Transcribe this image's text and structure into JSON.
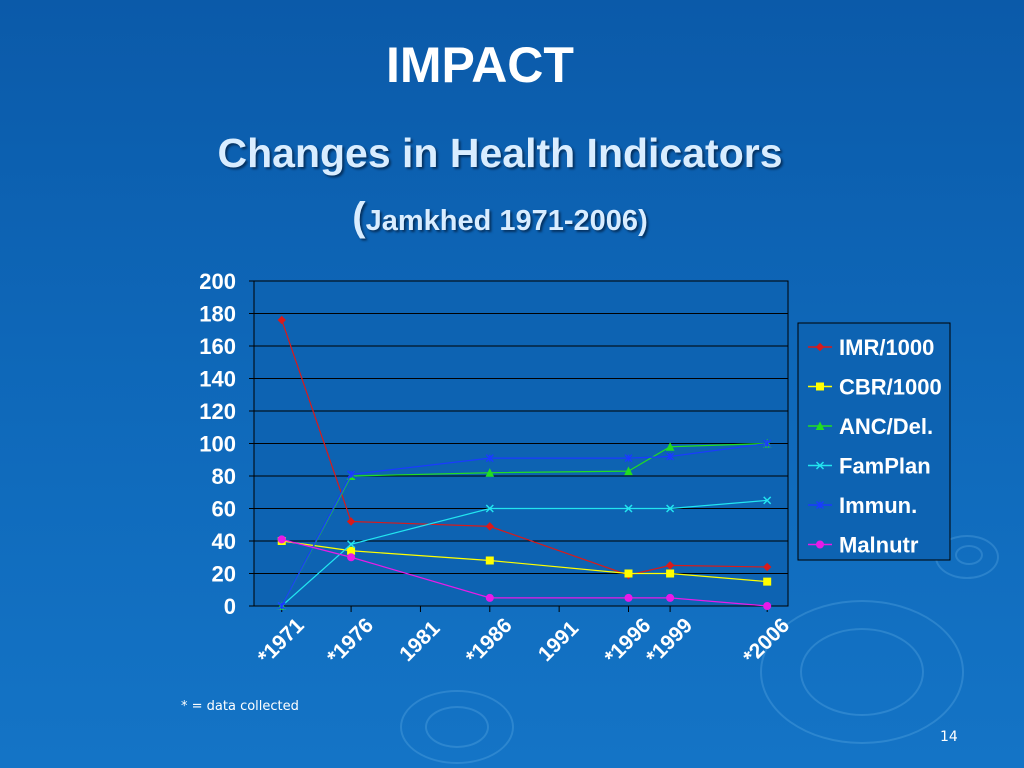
{
  "slide": {
    "title": "IMPACT",
    "heading": "Changes in Health Indicators",
    "subheading_paren": "(",
    "subheading_text": "Jamkhed 1971-2006)",
    "footnote": "* = data collected",
    "page_number": "14"
  },
  "colors": {
    "background": "#0e67b8",
    "text": "#ffffff",
    "heading_text": "#d9edff",
    "plot_background": "#0d63b2"
  },
  "chart_data": {
    "type": "line",
    "title": "",
    "xlabel": "",
    "ylabel": "",
    "ylim": [
      0,
      200
    ],
    "yticks": [
      0,
      20,
      40,
      60,
      80,
      100,
      120,
      140,
      160,
      180,
      200
    ],
    "x_range": [
      1969,
      2007.5
    ],
    "categories": [
      "*1971",
      "*1976",
      "1981",
      "*1986",
      "1991",
      "*1996",
      "*1999",
      "*2006"
    ],
    "category_years": [
      1971,
      1976,
      1981,
      1986,
      1991,
      1996,
      1999,
      2006
    ],
    "grid": "horizontal",
    "legend_position": "right",
    "series": [
      {
        "name": "IMR/1000",
        "color": "#d81b1b",
        "marker": "diamond",
        "points": [
          [
            1971,
            176
          ],
          [
            1976,
            52
          ],
          [
            1986,
            49
          ],
          [
            1996,
            19
          ],
          [
            1999,
            25
          ],
          [
            2006,
            24
          ]
        ]
      },
      {
        "name": "CBR/1000",
        "color": "#ffff00",
        "marker": "square",
        "points": [
          [
            1971,
            40
          ],
          [
            1976,
            34
          ],
          [
            1986,
            28
          ],
          [
            1996,
            20
          ],
          [
            1999,
            20
          ],
          [
            2006,
            15
          ]
        ]
      },
      {
        "name": "ANC/Del.",
        "color": "#22dd22",
        "marker": "triangle",
        "points": [
          [
            1971,
            0
          ],
          [
            1976,
            80
          ],
          [
            1986,
            82
          ],
          [
            1996,
            83
          ],
          [
            1999,
            98
          ],
          [
            2006,
            100
          ]
        ]
      },
      {
        "name": "FamPlan",
        "color": "#22e5f0",
        "marker": "x",
        "points": [
          [
            1971,
            0
          ],
          [
            1976,
            38
          ],
          [
            1986,
            60
          ],
          [
            1996,
            60
          ],
          [
            1999,
            60
          ],
          [
            2006,
            65
          ]
        ]
      },
      {
        "name": "Immun.",
        "color": "#1a3bff",
        "marker": "star",
        "points": [
          [
            1971,
            0
          ],
          [
            1976,
            81
          ],
          [
            1986,
            91
          ],
          [
            1996,
            91
          ],
          [
            1999,
            92
          ],
          [
            2006,
            100
          ]
        ]
      },
      {
        "name": "Malnutr",
        "color": "#e81be8",
        "marker": "circle",
        "points": [
          [
            1971,
            41
          ],
          [
            1976,
            30
          ],
          [
            1986,
            5
          ],
          [
            1996,
            5
          ],
          [
            1999,
            5
          ],
          [
            2006,
            0
          ]
        ]
      }
    ]
  }
}
